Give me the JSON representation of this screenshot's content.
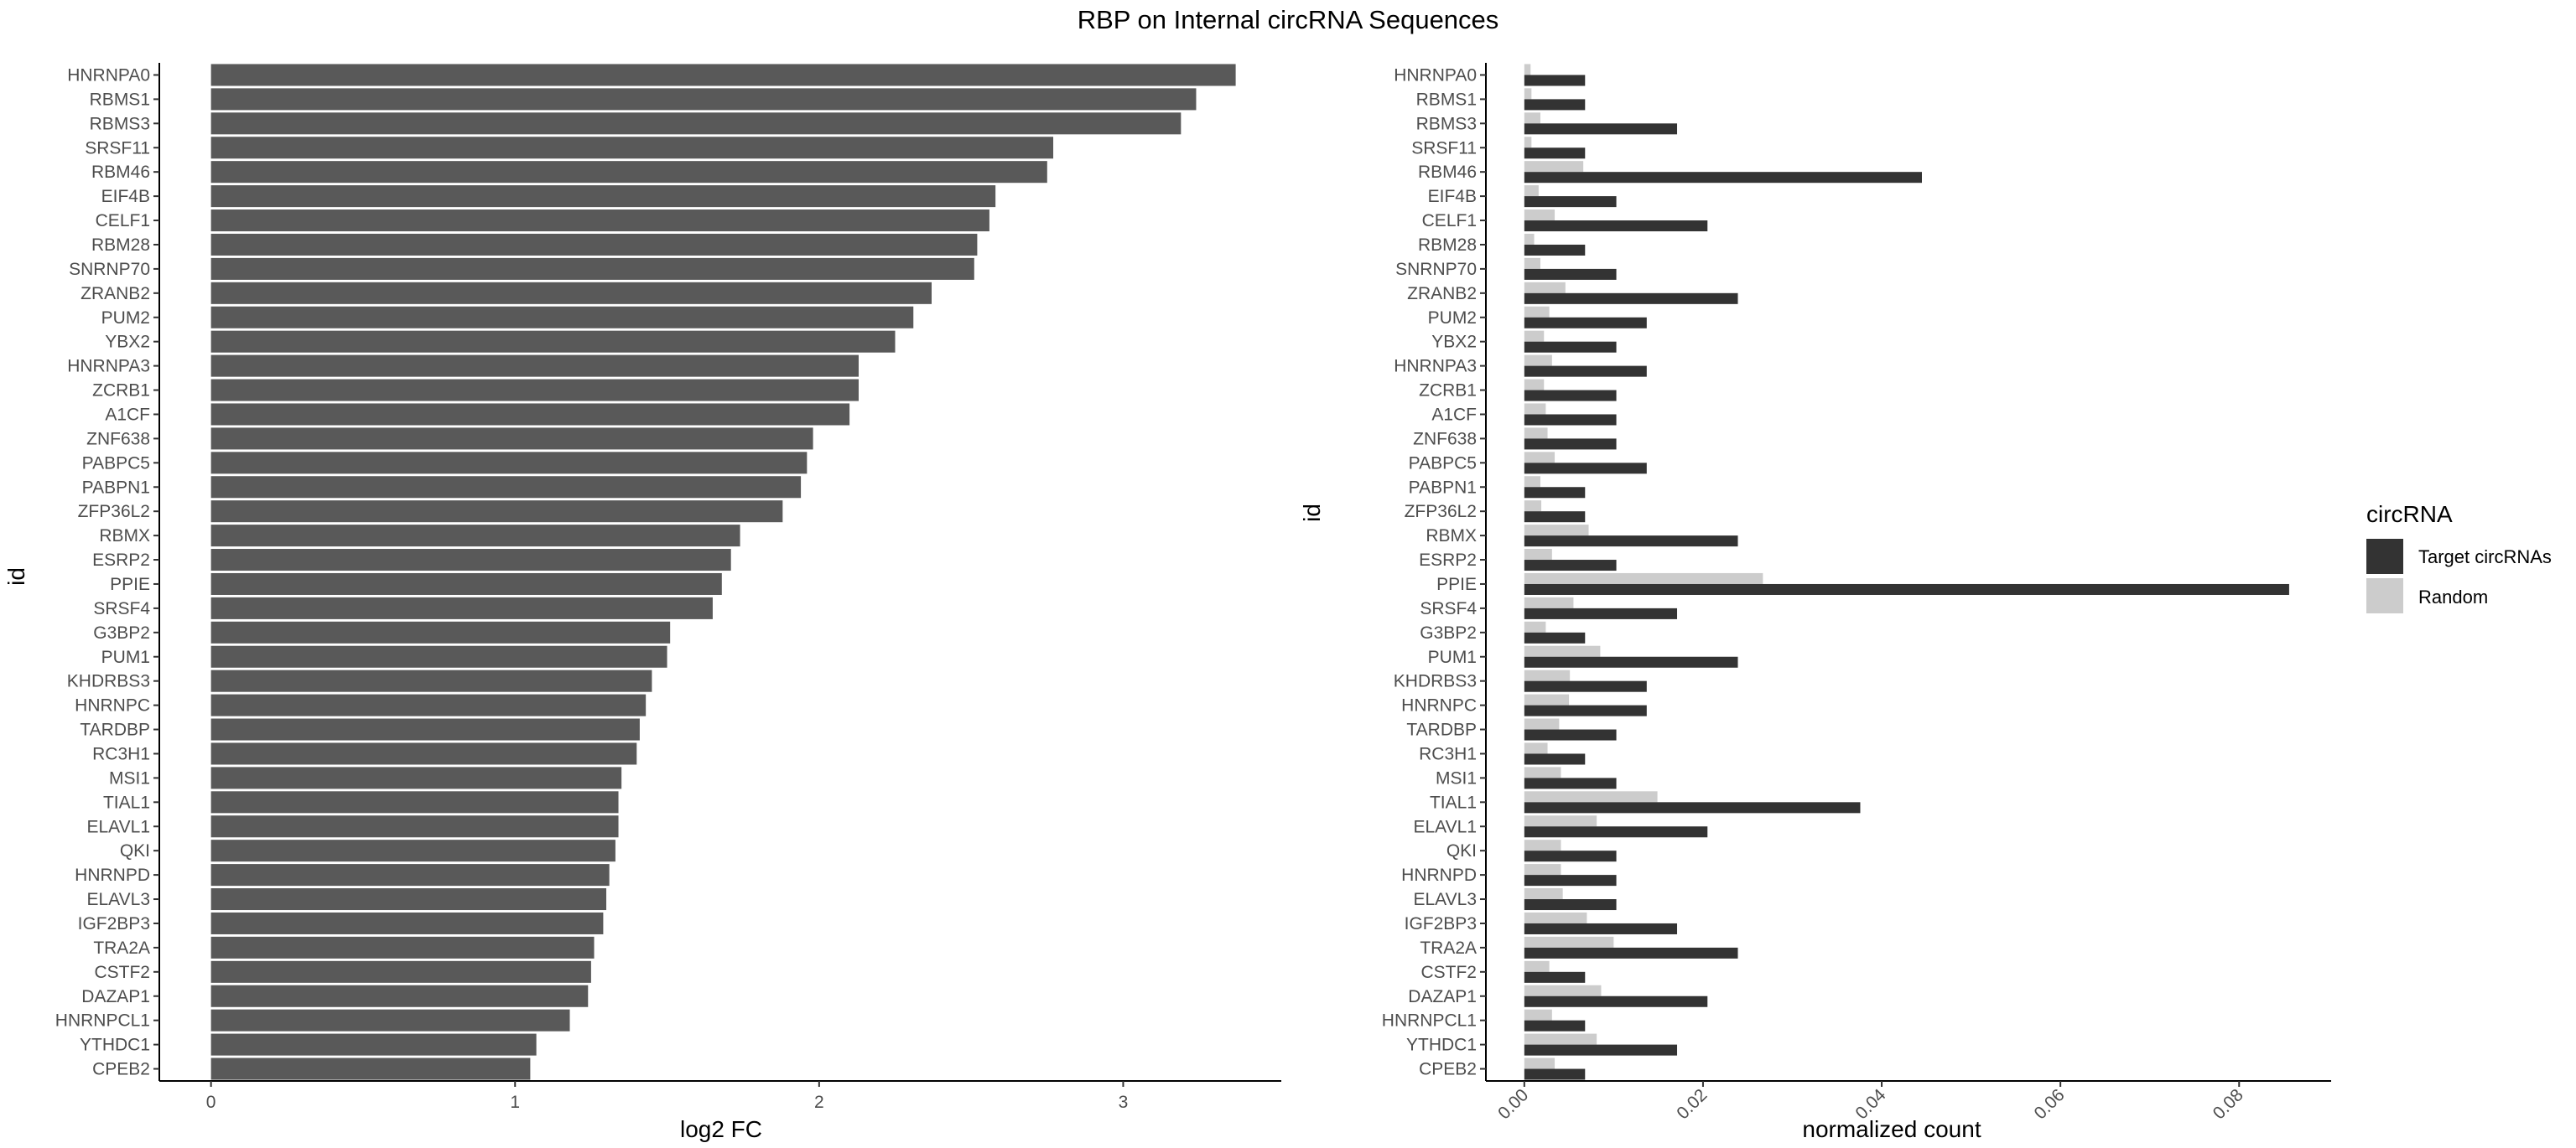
{
  "title": "RBP on Internal circRNA Sequences",
  "colors": {
    "left_bar": "#595959",
    "target": "#333333",
    "random": "#cccccc",
    "axis": "#000000",
    "tick_text": "#4d4d4d"
  },
  "chart_data": [
    {
      "type": "bar",
      "orientation": "horizontal",
      "xlabel": "log2 FC",
      "ylabel": "id",
      "xlim": [
        -0.17,
        3.52
      ],
      "xticks": [
        "0",
        "1",
        "2",
        "3"
      ],
      "categories": [
        "HNRNPA0",
        "RBMS1",
        "RBMS3",
        "SRSF11",
        "RBM46",
        "EIF4B",
        "CELF1",
        "RBM28",
        "SNRNP70",
        "ZRANB2",
        "PUM2",
        "YBX2",
        "HNRNPA3",
        "ZCRB1",
        "A1CF",
        "ZNF638",
        "PABPC5",
        "PABPN1",
        "ZFP36L2",
        "RBMX",
        "ESRP2",
        "PPIE",
        "SRSF4",
        "G3BP2",
        "PUM1",
        "KHDRBS3",
        "HNRNPC",
        "TARDBP",
        "RC3H1",
        "MSI1",
        "TIAL1",
        "ELAVL1",
        "QKI",
        "HNRNPD",
        "ELAVL3",
        "IGF2BP3",
        "TRA2A",
        "CSTF2",
        "DAZAP1",
        "HNRNPCL1",
        "YTHDC1",
        "CPEB2"
      ],
      "values": [
        3.37,
        3.24,
        3.19,
        2.77,
        2.75,
        2.58,
        2.56,
        2.52,
        2.51,
        2.37,
        2.31,
        2.25,
        2.13,
        2.13,
        2.1,
        1.98,
        1.96,
        1.94,
        1.88,
        1.74,
        1.71,
        1.68,
        1.65,
        1.51,
        1.5,
        1.45,
        1.43,
        1.41,
        1.4,
        1.35,
        1.34,
        1.34,
        1.33,
        1.31,
        1.3,
        1.29,
        1.26,
        1.25,
        1.24,
        1.18,
        1.07,
        1.05
      ]
    },
    {
      "type": "bar",
      "orientation": "horizontal",
      "grouped": true,
      "xlabel": "normalized count",
      "ylabel": "id",
      "xlim": [
        -0.0043,
        0.0903
      ],
      "xticks": [
        "0.00",
        "0.02",
        "0.04",
        "0.06",
        "0.08"
      ],
      "categories": [
        "HNRNPA0",
        "RBMS1",
        "RBMS3",
        "SRSF11",
        "RBM46",
        "EIF4B",
        "CELF1",
        "RBM28",
        "SNRNP70",
        "ZRANB2",
        "PUM2",
        "YBX2",
        "HNRNPA3",
        "ZCRB1",
        "A1CF",
        "ZNF638",
        "PABPC5",
        "PABPN1",
        "ZFP36L2",
        "RBMX",
        "ESRP2",
        "PPIE",
        "SRSF4",
        "G3BP2",
        "PUM1",
        "KHDRBS3",
        "HNRNPC",
        "TARDBP",
        "RC3H1",
        "MSI1",
        "TIAL1",
        "ELAVL1",
        "QKI",
        "HNRNPD",
        "ELAVL3",
        "IGF2BP3",
        "TRA2A",
        "CSTF2",
        "DAZAP1",
        "HNRNPCL1",
        "YTHDC1",
        "CPEB2"
      ],
      "series": [
        {
          "name": "Target circRNAs",
          "values": [
            0.0068,
            0.0068,
            0.0171,
            0.0068,
            0.0445,
            0.0103,
            0.0205,
            0.0068,
            0.0103,
            0.0239,
            0.0137,
            0.0103,
            0.0137,
            0.0103,
            0.0103,
            0.0103,
            0.0137,
            0.0068,
            0.0068,
            0.0239,
            0.0103,
            0.0856,
            0.0171,
            0.0068,
            0.0239,
            0.0137,
            0.0137,
            0.0103,
            0.0068,
            0.0103,
            0.0376,
            0.0205,
            0.0103,
            0.0103,
            0.0103,
            0.0171,
            0.0239,
            0.0068,
            0.0205,
            0.0068,
            0.0171,
            0.0068
          ]
        },
        {
          "name": "Random",
          "values": [
            0.0007,
            0.0008,
            0.0018,
            0.0008,
            0.0066,
            0.0016,
            0.0034,
            0.0011,
            0.0018,
            0.0046,
            0.0028,
            0.0022,
            0.0031,
            0.0022,
            0.0024,
            0.0026,
            0.0034,
            0.0018,
            0.0019,
            0.0072,
            0.0031,
            0.0267,
            0.0055,
            0.0024,
            0.0085,
            0.0051,
            0.005,
            0.0039,
            0.0026,
            0.0041,
            0.0149,
            0.0081,
            0.0041,
            0.0041,
            0.0043,
            0.007,
            0.01,
            0.0028,
            0.0086,
            0.0031,
            0.0081,
            0.0034
          ]
        }
      ],
      "legend": {
        "title": "circRNA",
        "position": "right"
      }
    }
  ]
}
